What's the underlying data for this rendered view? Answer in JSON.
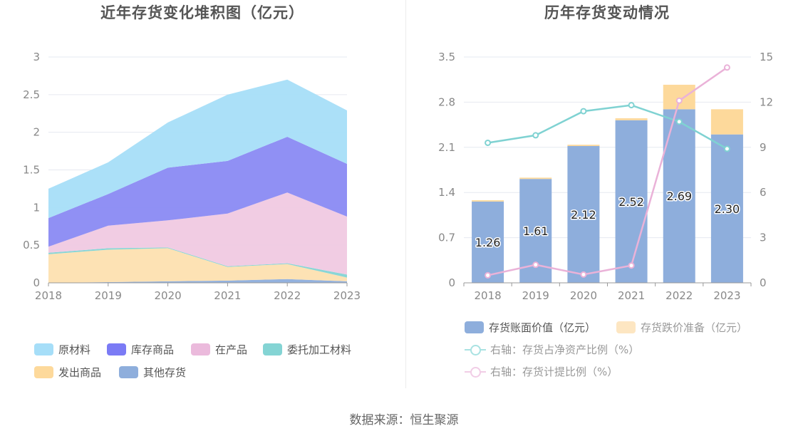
{
  "source": "数据来源：恒生聚源",
  "colors": {
    "raw_materials": "#a6def8",
    "finished_goods": "#8a8af3",
    "wip": "#f0c9e2",
    "consigned": "#84d4d4",
    "shipped": "#fde0b0",
    "other": "#8eaedc",
    "book_value": "#8eaedc",
    "provision": "#fdd99b",
    "ratio_net_assets": "#7fd2d2",
    "ratio_provision": "#eab2d8"
  },
  "chart_data": [
    {
      "type": "area",
      "title": "近年存货变化堆积图（亿元）",
      "x": [
        "2018",
        "2019",
        "2020",
        "2021",
        "2022",
        "2023"
      ],
      "ylim": [
        0,
        3
      ],
      "yticks": [
        "0",
        "0.5",
        "1",
        "1.5",
        "2",
        "2.5",
        "3"
      ],
      "stacked": true,
      "grid": true,
      "legend_position": "bottom",
      "series": [
        {
          "name": "其他存货",
          "color_key": "other",
          "values": [
            0.0,
            0.01,
            0.02,
            0.03,
            0.05,
            0.02
          ]
        },
        {
          "name": "发出商品",
          "color_key": "shipped",
          "values": [
            0.38,
            0.43,
            0.44,
            0.18,
            0.2,
            0.05
          ]
        },
        {
          "name": "委托加工材料",
          "color_key": "consigned",
          "values": [
            0.02,
            0.02,
            0.01,
            0.01,
            0.01,
            0.04
          ]
        },
        {
          "name": "在产品",
          "color_key": "wip",
          "values": [
            0.08,
            0.3,
            0.36,
            0.7,
            0.94,
            0.77
          ]
        },
        {
          "name": "库存商品",
          "color_key": "finished_goods",
          "values": [
            0.38,
            0.42,
            0.7,
            0.7,
            0.74,
            0.7
          ]
        },
        {
          "name": "原材料",
          "color_key": "raw_materials",
          "values": [
            0.39,
            0.42,
            0.6,
            0.88,
            0.76,
            0.71
          ]
        }
      ],
      "legend_order": [
        "原材料",
        "库存商品",
        "在产品",
        "委托加工材料",
        "发出商品",
        "其他存货"
      ]
    },
    {
      "type": "bar",
      "title": "历年存货变动情况",
      "categories": [
        "2018",
        "2019",
        "2020",
        "2021",
        "2022",
        "2023"
      ],
      "ylim": [
        0,
        3.5
      ],
      "yticks": [
        "0",
        "0.7",
        "1.4",
        "2.1",
        "2.8",
        "3.5"
      ],
      "y2lim": [
        0,
        15
      ],
      "y2ticks": [
        "0",
        "3",
        "6",
        "9",
        "12",
        "15"
      ],
      "stacked": true,
      "grid": true,
      "legend_position": "bottom",
      "series": [
        {
          "name": "存货账面价值（亿元）",
          "color_key": "book_value",
          "axis": "left",
          "kind": "bar",
          "values": [
            1.26,
            1.61,
            2.12,
            2.52,
            2.69,
            2.3
          ],
          "labels": [
            "1.26",
            "1.61",
            "2.12",
            "2.52",
            "2.69",
            "2.30"
          ]
        },
        {
          "name": "存货跌价准备（亿元）",
          "color_key": "provision",
          "axis": "left",
          "kind": "bar",
          "values": [
            0.02,
            0.02,
            0.02,
            0.03,
            0.38,
            0.39
          ]
        },
        {
          "name": "右轴：存货占净资产比例（%）",
          "color_key": "ratio_net_assets",
          "axis": "right",
          "kind": "line",
          "values": [
            9.3,
            9.8,
            11.4,
            11.8,
            10.7,
            8.9
          ]
        },
        {
          "name": "右轴：存货计提比例（%）",
          "color_key": "ratio_provision",
          "axis": "right",
          "kind": "line",
          "values": [
            0.5,
            1.2,
            0.55,
            1.15,
            12.1,
            14.3
          ]
        }
      ]
    }
  ]
}
